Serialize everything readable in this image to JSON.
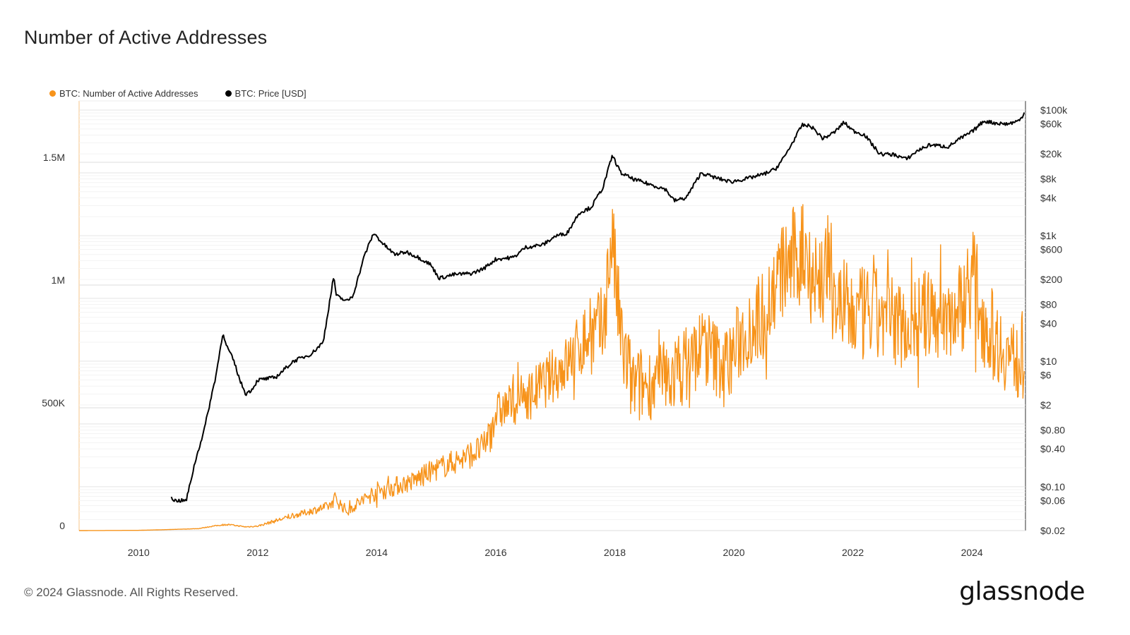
{
  "title": "Number of Active Addresses",
  "footer": "© 2024 Glassnode. All Rights Reserved.",
  "logo": "glassnode",
  "chart_data": {
    "type": "line",
    "title": "Number of Active Addresses",
    "x_tick_labels": [
      "2010",
      "2012",
      "2014",
      "2016",
      "2018",
      "2020",
      "2022",
      "2024"
    ],
    "xlim": [
      2009.0,
      2024.9
    ],
    "y_left": {
      "scale": "linear",
      "ylim": [
        0,
        1750000
      ],
      "tick_values": [
        0,
        500000,
        1000000,
        1500000
      ],
      "tick_labels": [
        "0",
        "500K",
        "1M",
        "1.5M"
      ]
    },
    "y_right": {
      "scale": "log",
      "ylim": [
        0.02,
        140000
      ],
      "tick_values": [
        100000,
        60000,
        20000,
        8000,
        4000,
        1000,
        600,
        200,
        80,
        40,
        10,
        6,
        2,
        0.8,
        0.4,
        0.1,
        0.06,
        0.02
      ],
      "tick_labels": [
        "$100k",
        "$60k",
        "$20k",
        "$8k",
        "$4k",
        "$1k",
        "$600",
        "$200",
        "$80",
        "$40",
        "$10",
        "$6",
        "$2",
        "$0.80",
        "$0.40",
        "$0.10",
        "$0.06",
        "$0.02"
      ]
    },
    "grid": true,
    "legend_position": "top-left",
    "series": [
      {
        "name": "BTC: Number of Active Addresses",
        "color": "#f7931a",
        "axis": "left",
        "x": [
          2009.0,
          2010.0,
          2010.5,
          2011.0,
          2011.3,
          2011.5,
          2011.8,
          2012.0,
          2012.3,
          2012.6,
          2012.9,
          2013.2,
          2013.3,
          2013.5,
          2013.8,
          2014.0,
          2014.3,
          2014.6,
          2014.9,
          2015.2,
          2015.5,
          2015.8,
          2016.0,
          2016.3,
          2016.6,
          2016.9,
          2017.2,
          2017.5,
          2017.8,
          2017.95,
          2018.1,
          2018.3,
          2018.6,
          2018.9,
          2019.2,
          2019.5,
          2019.7,
          2019.9,
          2020.2,
          2020.5,
          2020.8,
          2021.0,
          2021.2,
          2021.4,
          2021.55,
          2021.8,
          2022.0,
          2022.3,
          2022.6,
          2022.9,
          2023.2,
          2023.5,
          2023.8,
          2024.0,
          2024.2,
          2024.4,
          2024.6,
          2024.8,
          2024.88
        ],
        "values": [
          0,
          1000,
          4000,
          8000,
          20000,
          25000,
          15000,
          18000,
          40000,
          60000,
          80000,
          100000,
          130000,
          80000,
          130000,
          160000,
          180000,
          200000,
          240000,
          270000,
          300000,
          340000,
          480000,
          520000,
          560000,
          620000,
          680000,
          780000,
          820000,
          1200000,
          780000,
          580000,
          600000,
          620000,
          680000,
          760000,
          700000,
          680000,
          820000,
          880000,
          1050000,
          1100000,
          1150000,
          1000000,
          1080000,
          900000,
          870000,
          880000,
          860000,
          840000,
          880000,
          870000,
          900000,
          1050000,
          860000,
          780000,
          720000,
          680000,
          720000
        ],
        "noise": [
          0,
          0,
          0,
          1000,
          2000,
          3000,
          2000,
          3000,
          8000,
          10000,
          15000,
          20000,
          30000,
          20000,
          30000,
          40000,
          40000,
          40000,
          45000,
          50000,
          55000,
          60000,
          80000,
          90000,
          100000,
          110000,
          120000,
          150000,
          180000,
          200000,
          200000,
          170000,
          150000,
          150000,
          160000,
          170000,
          160000,
          160000,
          180000,
          190000,
          200000,
          220000,
          230000,
          240000,
          250000,
          210000,
          200000,
          200000,
          190000,
          180000,
          180000,
          190000,
          200000,
          210000,
          200000,
          180000,
          160000,
          160000,
          180000
        ]
      },
      {
        "name": "BTC: Price [USD]",
        "color": "#000000",
        "axis": "right",
        "x": [
          2010.55,
          2010.6,
          2010.8,
          2010.95,
          2011.1,
          2011.3,
          2011.42,
          2011.45,
          2011.6,
          2011.7,
          2011.8,
          2011.9,
          2012.0,
          2012.3,
          2012.6,
          2012.9,
          2013.1,
          2013.28,
          2013.32,
          2013.5,
          2013.6,
          2013.8,
          2013.95,
          2014.1,
          2014.3,
          2014.5,
          2014.7,
          2014.9,
          2015.05,
          2015.3,
          2015.6,
          2015.8,
          2016.0,
          2016.3,
          2016.5,
          2016.8,
          2017.0,
          2017.2,
          2017.4,
          2017.6,
          2017.8,
          2017.96,
          2018.1,
          2018.3,
          2018.6,
          2018.85,
          2019.0,
          2019.2,
          2019.45,
          2019.7,
          2019.95,
          2020.2,
          2020.5,
          2020.7,
          2020.85,
          2021.0,
          2021.15,
          2021.3,
          2021.5,
          2021.7,
          2021.85,
          2022.0,
          2022.2,
          2022.45,
          2022.7,
          2022.9,
          2023.1,
          2023.3,
          2023.6,
          2023.8,
          2024.0,
          2024.2,
          2024.4,
          2024.6,
          2024.8,
          2024.88
        ],
        "values": [
          0.07,
          0.06,
          0.06,
          0.25,
          0.8,
          6,
          30,
          20,
          10,
          5,
          3,
          3.5,
          5,
          5.5,
          10,
          13,
          20,
          230,
          110,
          90,
          110,
          500,
          1100,
          750,
          500,
          550,
          450,
          350,
          210,
          240,
          250,
          300,
          420,
          450,
          650,
          720,
          980,
          1100,
          2300,
          2800,
          5800,
          19000,
          10000,
          8000,
          6500,
          5500,
          3600,
          4000,
          10000,
          8300,
          7200,
          8000,
          9500,
          11500,
          18000,
          32000,
          58000,
          55000,
          35000,
          45000,
          64000,
          47000,
          40000,
          20000,
          19500,
          16500,
          23000,
          28000,
          26000,
          35000,
          45000,
          67000,
          62000,
          60000,
          68000,
          90000
        ]
      }
    ]
  }
}
